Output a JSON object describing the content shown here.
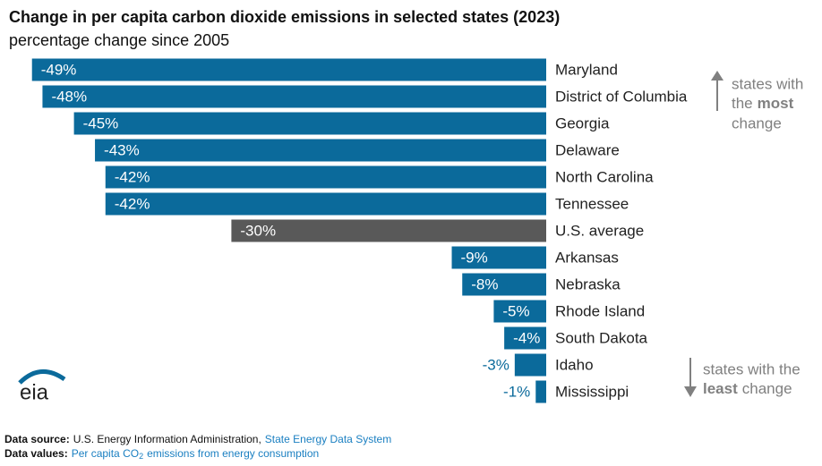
{
  "chart_data": {
    "type": "hbar",
    "title": "Change in per capita carbon dioxide emissions in selected states (2023)",
    "subtitle": "percentage change since 2005",
    "categories": [
      "Maryland",
      "District of Columbia",
      "Georgia",
      "Delaware",
      "North Carolina",
      "Tennessee",
      "U.S. average",
      "Arkansas",
      "Nebraska",
      "Rhode Island",
      "South Dakota",
      "Idaho",
      "Mississippi"
    ],
    "values": [
      -49,
      -48,
      -45,
      -43,
      -42,
      -42,
      -30,
      -9,
      -8,
      -5,
      -4,
      -3,
      -1
    ],
    "value_labels": [
      "-49%",
      "-48%",
      "-45%",
      "-43%",
      "-42%",
      "-42%",
      "-30%",
      "-9%",
      "-8%",
      "-5%",
      "-4%",
      "-3%",
      "-1%"
    ],
    "colors": [
      "#0b6a9b",
      "#0b6a9b",
      "#0b6a9b",
      "#0b6a9b",
      "#0b6a9b",
      "#0b6a9b",
      "#595959",
      "#0b6a9b",
      "#0b6a9b",
      "#0b6a9b",
      "#0b6a9b",
      "#0b6a9b",
      "#0b6a9b"
    ],
    "xlim": [
      -50,
      0
    ],
    "annotations": {
      "most": {
        "line1": "states with",
        "line2a": "the",
        "line2b": "most",
        "line3": "change"
      },
      "least": {
        "line1": "states with the",
        "line2a": "least",
        "line2b": "change"
      }
    },
    "logo": "eia",
    "footer": {
      "source_label": "Data source:",
      "source_text": "U.S. Energy Information Administration,",
      "source_link": "State Energy Data System",
      "values_label": "Data values:",
      "values_text_a": "Per capita CO",
      "values_text_sub": "2",
      "values_text_b": "emissions from energy consumption"
    }
  }
}
